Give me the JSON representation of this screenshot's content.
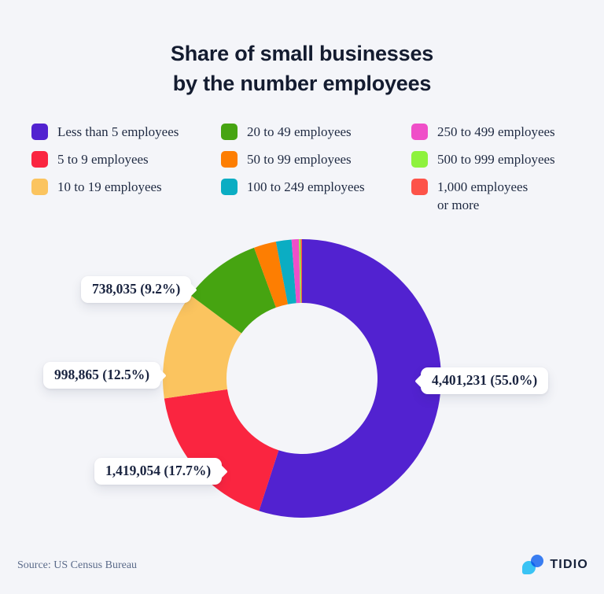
{
  "title": {
    "line1": "Share of small businesses",
    "line2": "by the number employees"
  },
  "legend": {
    "items": [
      {
        "lines": [
          "Less than 5 employees"
        ],
        "color": "#5222d0"
      },
      {
        "lines": [
          "5 to 9 employees"
        ],
        "color": "#fa2540"
      },
      {
        "lines": [
          "10 to 19 employees"
        ],
        "color": "#fbc45f"
      },
      {
        "lines": [
          "20 to 49 employees"
        ],
        "color": "#46a411"
      },
      {
        "lines": [
          "50 to 99 employees"
        ],
        "color": "#fd7e02"
      },
      {
        "lines": [
          "100 to 249 employees"
        ],
        "color": "#0badc3"
      },
      {
        "lines": [
          "250 to 499 employees"
        ],
        "color": "#ef4fc8"
      },
      {
        "lines": [
          "500 to 999 employees"
        ],
        "color": "#8ef23d"
      },
      {
        "lines": [
          "1,000 employees",
          "or more"
        ],
        "color": "#fd5349"
      }
    ]
  },
  "chart_data": {
    "type": "pie",
    "subtype": "donut",
    "start_angle_deg": 0,
    "direction": "clockwise",
    "legend_position": "top",
    "slices": [
      {
        "id": "less-than-5",
        "label": "Less than 5 employees",
        "color": "#5222d0",
        "value": 55.0,
        "count": "4,401,231"
      },
      {
        "id": "5-to-9",
        "label": "5 to 9 employees",
        "color": "#fa2540",
        "value": 17.7,
        "count": "1,419,054"
      },
      {
        "id": "10-to-19",
        "label": "10 to 19 employees",
        "color": "#fbc45f",
        "value": 12.5,
        "count": "998,865"
      },
      {
        "id": "20-to-49",
        "label": "20 to 49 employees",
        "color": "#46a411",
        "value": 9.2,
        "count": "738,035"
      },
      {
        "id": "50-to-99",
        "label": "50 to 99 employees",
        "color": "#fd7e02",
        "value": 2.6,
        "estimated": true
      },
      {
        "id": "100-to-249",
        "label": "100 to 249 employees",
        "color": "#0badc3",
        "value": 1.8,
        "estimated": true
      },
      {
        "id": "250-to-499",
        "label": "250 to 499 employees",
        "color": "#ef4fc8",
        "value": 0.85,
        "estimated": true
      },
      {
        "id": "500-to-999",
        "label": "500 to 999 employees",
        "color": "#8ef23d",
        "value": 0.2,
        "estimated": true
      },
      {
        "id": "1000-or-more",
        "label": "1,000 employees or more",
        "color": "#fd5349",
        "value": 0.15,
        "estimated": true
      }
    ],
    "callouts": [
      {
        "text": "4,401,231 (55.0%)",
        "slice": "less-than-5",
        "side": "left"
      },
      {
        "text": "738,035 (9.2%)",
        "slice": "20-to-49",
        "side": "right"
      },
      {
        "text": "998,865 (12.5%)",
        "slice": "10-to-19",
        "side": "right"
      },
      {
        "text": "1,419,054 (17.7%)",
        "slice": "5-to-9",
        "side": "right"
      }
    ]
  },
  "colors": {
    "background": "#f4f5f9",
    "title_text": "#141c30"
  },
  "footer": {
    "source": "Source: US Census Bureau",
    "brand": "TIDIO"
  }
}
